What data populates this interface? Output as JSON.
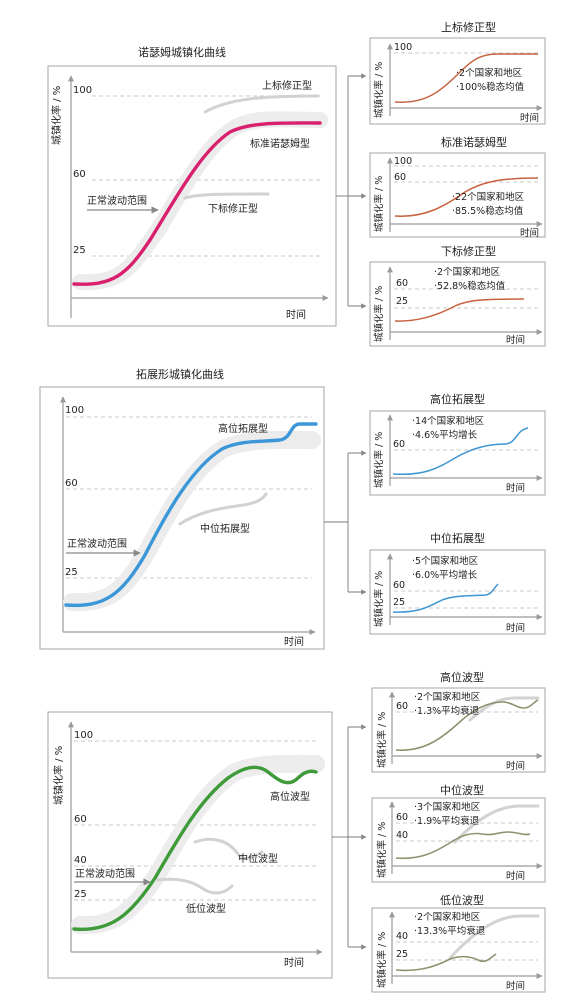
{
  "labels": {
    "y_axis": "城镇化率 / %",
    "x_axis": "时间",
    "normal_range": "正常波动范围"
  },
  "colors": {
    "standard": "#d9206f",
    "expansion": "#3b97d8",
    "wave": "#3f9b3a",
    "small_red": "#c8613e",
    "small_blue": "#3e96d3",
    "small_olive": "#8a9470",
    "ghost": "#cfcfcf"
  },
  "section1": {
    "title": "诺瑟姆城镇化曲线",
    "ticks": [
      "100",
      "60",
      "25"
    ],
    "curve_labels": {
      "upper": "上标修正型",
      "standard": "标准诺瑟姆型",
      "lower": "下标修正型"
    },
    "panels": [
      {
        "title": "上标修正型",
        "ticks": [
          "100"
        ],
        "lines": [
          "·2个国家和地区",
          "·100%稳态均值"
        ]
      },
      {
        "title": "标准诺瑟姆型",
        "ticks": [
          "100",
          "60"
        ],
        "lines": [
          "·22个国家和地区",
          "·85.5%稳态均值"
        ]
      },
      {
        "title": "下标修正型",
        "ticks": [
          "60",
          "25"
        ],
        "lines": [
          "·2个国家和地区",
          "·52.8%稳态均值"
        ]
      }
    ]
  },
  "section2": {
    "title": "拓展形城镇化曲线",
    "ticks": [
      "100",
      "60",
      "25"
    ],
    "curve_labels": {
      "high": "高位拓展型",
      "mid": "中位拓展型"
    },
    "panels": [
      {
        "title": "高位拓展型",
        "ticks": [
          "60"
        ],
        "lines": [
          "·14个国家和地区",
          "·4.6%平均增长"
        ]
      },
      {
        "title": "中位拓展型",
        "ticks": [
          "60",
          "25"
        ],
        "lines": [
          "·5个国家和地区",
          "·6.0%平均增长"
        ]
      }
    ]
  },
  "section3": {
    "ticks": [
      "100",
      "60",
      "40",
      "25"
    ],
    "curve_labels": {
      "high": "高位波型",
      "mid": "中位波型",
      "low": "低位波型"
    },
    "panels": [
      {
        "title": "高位波型",
        "ticks": [
          "60"
        ],
        "lines": [
          "·2个国家和地区",
          "·1.3%平均衰退"
        ]
      },
      {
        "title": "中位波型",
        "ticks": [
          "60",
          "40"
        ],
        "lines": [
          "·3个国家和地区",
          "·1.9%平均衰退"
        ]
      },
      {
        "title": "低位波型",
        "ticks": [
          "40",
          "25"
        ],
        "lines": [
          "·2个国家和地区",
          "·13.3%平均衰退"
        ]
      }
    ]
  }
}
